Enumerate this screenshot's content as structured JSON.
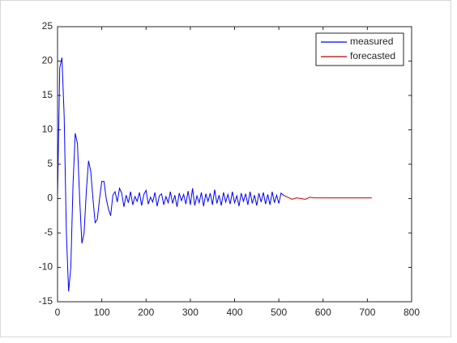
{
  "chart_data": {
    "type": "line",
    "series": [
      {
        "name": "measured",
        "color": "#0000ff",
        "x": [
          0,
          5,
          10,
          15,
          20,
          25,
          30,
          35,
          40,
          45,
          50,
          55,
          60,
          65,
          70,
          75,
          80,
          85,
          90,
          95,
          100,
          105,
          110,
          115,
          120,
          125,
          130,
          135,
          140,
          145,
          150,
          155,
          160,
          165,
          170,
          175,
          180,
          185,
          190,
          195,
          200,
          205,
          210,
          215,
          220,
          225,
          230,
          235,
          240,
          245,
          250,
          255,
          260,
          265,
          270,
          275,
          280,
          285,
          290,
          295,
          300,
          305,
          310,
          315,
          320,
          325,
          330,
          335,
          340,
          345,
          350,
          355,
          360,
          365,
          370,
          375,
          380,
          385,
          390,
          395,
          400,
          405,
          410,
          415,
          420,
          425,
          430,
          435,
          440,
          445,
          450,
          455,
          460,
          465,
          470,
          475,
          480,
          485,
          490,
          495,
          500,
          505,
          510
        ],
        "values": [
          0,
          19,
          20.5,
          12,
          -5,
          -13.5,
          -10,
          2,
          9.5,
          8,
          0,
          -6.5,
          -5,
          1,
          5.5,
          4,
          0,
          -3.5,
          -3,
          0,
          2.5,
          2.5,
          0,
          -1.5,
          -2.5,
          0.5,
          1,
          -0.5,
          1.5,
          0.8,
          -1.2,
          0.5,
          -0.6,
          1.0,
          -0.9,
          0.3,
          -0.4,
          0.9,
          -1.0,
          0.6,
          1.2,
          -0.8,
          0.2,
          -0.5,
          0.9,
          -1.1,
          0.4,
          0.7,
          -0.9,
          0.3,
          -0.6,
          1.0,
          -0.7,
          0.5,
          -1.2,
          0.8,
          -0.3,
          0.6,
          -0.8,
          1.1,
          -0.9,
          1.5,
          -1.0,
          0.4,
          -0.6,
          0.9,
          -1.1,
          0.7,
          -0.4,
          0.8,
          -0.9,
          1.3,
          -0.7,
          0.5,
          -1.0,
          0.9,
          -0.5,
          0.6,
          -0.8,
          1.0,
          -0.6,
          0.4,
          -1.1,
          0.8,
          -0.4,
          0.7,
          -0.9,
          1.0,
          -0.7,
          0.5,
          -1.0,
          0.8,
          -0.5,
          0.9,
          -0.8,
          0.6,
          -0.9,
          1.0,
          -0.6,
          0.5,
          -0.7,
          0.8,
          0.5
        ]
      },
      {
        "name": "forecasted",
        "color": "#c00000",
        "x": [
          510,
          520,
          530,
          540,
          550,
          560,
          570,
          580,
          590,
          600,
          610,
          620,
          630,
          640,
          650,
          660,
          670,
          680,
          690,
          700,
          710
        ],
        "values": [
          0.5,
          0.2,
          -0.1,
          0.1,
          0,
          -0.1,
          0.2,
          0.1,
          0.1,
          0.1,
          0.1,
          0.1,
          0.1,
          0.1,
          0.1,
          0.1,
          0.1,
          0.1,
          0.1,
          0.1,
          0.1
        ]
      }
    ],
    "xlim": [
      0,
      800
    ],
    "xticks": [
      0,
      100,
      200,
      300,
      400,
      500,
      600,
      700,
      800
    ],
    "ylim": [
      -15,
      25
    ],
    "yticks": [
      -15,
      -10,
      -5,
      0,
      5,
      10,
      15,
      20,
      25
    ],
    "legend": "top-right"
  }
}
